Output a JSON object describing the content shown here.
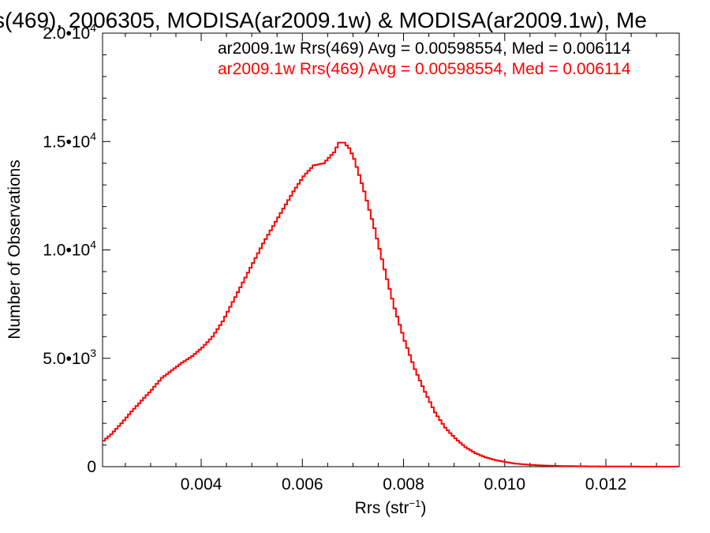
{
  "chart_data": {
    "type": "line",
    "title": "s(469), 2006305, MODISA(ar2009.1w) & MODISA(ar2009.1w), Me",
    "xlabel": "Rrs (str",
    "xlabel_sup": "−1",
    "xlabel_close": ")",
    "ylabel": "Number of Observations",
    "xlim": [
      0.00205,
      0.01345
    ],
    "ylim": [
      0,
      20000
    ],
    "x_ticks": [
      {
        "value": 0.004,
        "label": "0.004"
      },
      {
        "value": 0.006,
        "label": "0.006"
      },
      {
        "value": 0.008,
        "label": "0.008"
      },
      {
        "value": 0.01,
        "label": "0.010"
      },
      {
        "value": 0.012,
        "label": "0.012"
      }
    ],
    "y_ticks": [
      {
        "value": 0,
        "mantissa": "0",
        "exp": ""
      },
      {
        "value": 5000,
        "mantissa": "5.0•10",
        "exp": "3"
      },
      {
        "value": 10000,
        "mantissa": "1.0•10",
        "exp": "4"
      },
      {
        "value": 15000,
        "mantissa": "1.5•10",
        "exp": "4"
      },
      {
        "value": 20000,
        "mantissa": "2.0•10",
        "exp": "4"
      }
    ],
    "annotations": [
      {
        "text": "ar2009.1w Rrs(469) Avg = 0.00598554, Med = 0.006114",
        "color": "#000000"
      },
      {
        "text": "ar2009.1w Rrs(469) Avg = 0.00598554, Med = 0.006114",
        "color": "#ff0000"
      }
    ],
    "series": [
      {
        "color": "#ff0000",
        "points": [
          [
            0.00205,
            1200
          ],
          [
            0.0022,
            1500
          ],
          [
            0.0024,
            2000
          ],
          [
            0.0026,
            2550
          ],
          [
            0.0028,
            3050
          ],
          [
            0.003,
            3550
          ],
          [
            0.0032,
            4100
          ],
          [
            0.0034,
            4450
          ],
          [
            0.0036,
            4800
          ],
          [
            0.0038,
            5100
          ],
          [
            0.004,
            5500
          ],
          [
            0.0042,
            6000
          ],
          [
            0.0044,
            6700
          ],
          [
            0.0046,
            7600
          ],
          [
            0.0048,
            8500
          ],
          [
            0.005,
            9400
          ],
          [
            0.0052,
            10300
          ],
          [
            0.0054,
            11100
          ],
          [
            0.0056,
            11900
          ],
          [
            0.0058,
            12700
          ],
          [
            0.006,
            13400
          ],
          [
            0.0062,
            13900
          ],
          [
            0.0064,
            14000
          ],
          [
            0.0066,
            14500
          ],
          [
            0.0067,
            14950
          ],
          [
            0.0068,
            14950
          ],
          [
            0.0069,
            14700
          ],
          [
            0.007,
            14200
          ],
          [
            0.0072,
            12700
          ],
          [
            0.0074,
            11000
          ],
          [
            0.0076,
            9100
          ],
          [
            0.0078,
            7300
          ],
          [
            0.008,
            5800
          ],
          [
            0.0082,
            4500
          ],
          [
            0.0084,
            3450
          ],
          [
            0.0086,
            2500
          ],
          [
            0.0088,
            1800
          ],
          [
            0.009,
            1300
          ],
          [
            0.0092,
            900
          ],
          [
            0.0094,
            620
          ],
          [
            0.0096,
            430
          ],
          [
            0.0098,
            300
          ],
          [
            0.01,
            210
          ],
          [
            0.0102,
            140
          ],
          [
            0.0104,
            100
          ],
          [
            0.0106,
            70
          ],
          [
            0.0108,
            50
          ],
          [
            0.011,
            35
          ],
          [
            0.0115,
            18
          ],
          [
            0.012,
            10
          ],
          [
            0.0125,
            6
          ],
          [
            0.013,
            4
          ],
          [
            0.01345,
            3
          ]
        ]
      }
    ]
  }
}
